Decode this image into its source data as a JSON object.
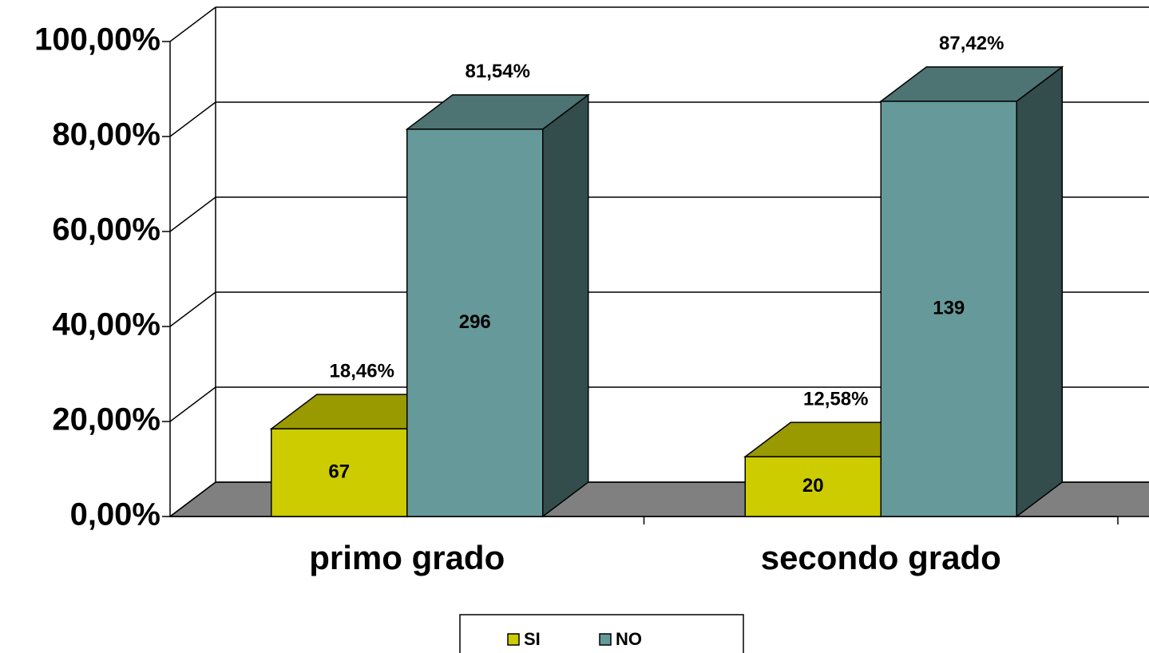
{
  "chart_data": {
    "type": "bar3d",
    "categories": [
      "primo grado",
      "secondo grado"
    ],
    "series": [
      {
        "name": "SI",
        "color": "#cccc00",
        "values": [
          18.46,
          12.58
        ],
        "value_labels": [
          "18,46%",
          "12,58%"
        ],
        "counts": [
          67,
          20
        ]
      },
      {
        "name": "NO",
        "color": "#669999",
        "values": [
          81.54,
          87.42
        ],
        "value_labels": [
          "81,54%",
          "87,42%"
        ],
        "counts": [
          296,
          139
        ]
      }
    ],
    "ylim": [
      0,
      100
    ],
    "yticks": [
      {
        "value": 0,
        "label": "0,00%"
      },
      {
        "value": 20,
        "label": "20,00%"
      },
      {
        "value": 40,
        "label": "40,00%"
      },
      {
        "value": 60,
        "label": "60,00%"
      },
      {
        "value": 80,
        "label": "80,00%"
      },
      {
        "value": 100,
        "label": "100,00%"
      }
    ],
    "grid": true,
    "legend": "bottom"
  }
}
